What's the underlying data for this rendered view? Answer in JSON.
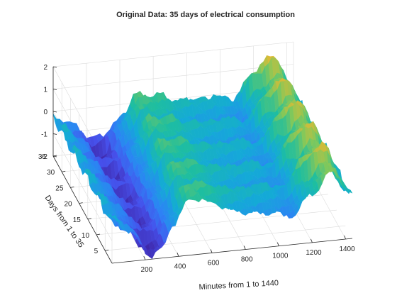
{
  "chart_data": {
    "type": "surface",
    "title": "Original Data: 35 days of electrical consumption",
    "xlabel": "Minutes from 1 to 1440",
    "ylabel": "Days from 1 to 35",
    "zlabel": "",
    "xlim": [
      1,
      1440
    ],
    "ylim": [
      1,
      35
    ],
    "zlim": [
      -2,
      2
    ],
    "xticks": [
      200,
      400,
      600,
      800,
      1000,
      1200,
      1400
    ],
    "yticks": [
      5,
      10,
      15,
      20,
      25,
      30,
      35
    ],
    "zticks": [
      -2,
      -1,
      0,
      1,
      2
    ],
    "colormap": "parula",
    "grid": true,
    "surface_profile": {
      "minutes": [
        1,
        120,
        240,
        300,
        360,
        480,
        600,
        720,
        840,
        960,
        1080,
        1200,
        1320,
        1440
      ],
      "standardized_consumption_weekday": [
        -0.2,
        -0.9,
        -2.0,
        -1.7,
        -0.6,
        0.6,
        0.4,
        0.0,
        -0.2,
        -0.3,
        -0.6,
        0.2,
        1.0,
        -0.2
      ],
      "standardized_consumption_weekend": [
        -0.2,
        -0.7,
        -1.4,
        -1.3,
        -0.8,
        -0.2,
        -0.1,
        -0.2,
        -0.2,
        -0.1,
        -0.3,
        0.9,
        1.5,
        -0.1
      ]
    }
  }
}
